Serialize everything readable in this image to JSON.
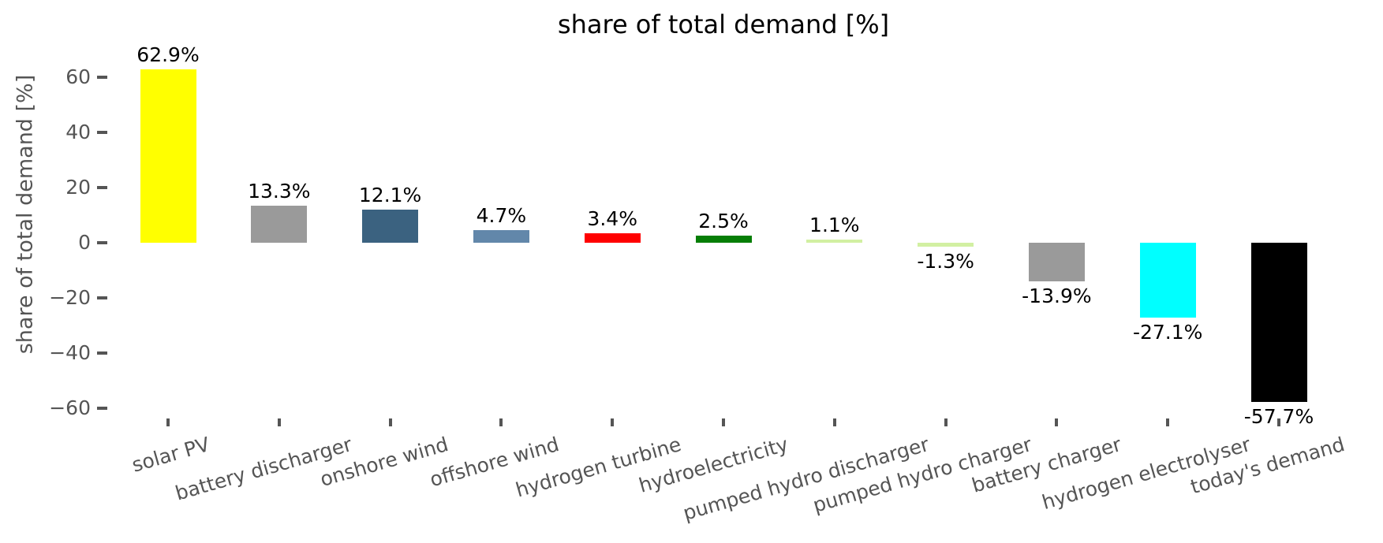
{
  "figure": {
    "title": "share of total demand [%]",
    "background_color": "#ffffff"
  },
  "chart_data": {
    "type": "bar",
    "title": "share of total demand [%]",
    "xlabel": "",
    "ylabel": "share of total demand [%]",
    "categories": [
      "solar PV",
      "battery discharger",
      "onshore wind",
      "offshore wind",
      "hydrogen turbine",
      "hydroelectricity",
      "pumped hydro discharger",
      "pumped hydro charger",
      "battery charger",
      "hydrogen electrolyser",
      "today's demand"
    ],
    "values": [
      62.9,
      13.3,
      12.1,
      4.7,
      3.4,
      2.5,
      1.1,
      -1.3,
      -13.9,
      -27.1,
      -57.7
    ],
    "value_labels": [
      "62.9%",
      "13.3%",
      "12.1%",
      "4.7%",
      "3.4%",
      "2.5%",
      "1.1%",
      "-1.3%",
      "-13.9%",
      "-27.1%",
      "-57.7%"
    ],
    "bar_colors": [
      "#ffff00",
      "#9a9a9a",
      "#3b6280",
      "#6287aa",
      "#ff0000",
      "#067e06",
      "#d2f0a2",
      "#d2f0a2",
      "#9a9a9a",
      "#00ffff",
      "#000000"
    ],
    "yticks": [
      60,
      40,
      20,
      0,
      -20,
      -40,
      -60
    ],
    "ytick_labels": [
      "60",
      "40",
      "20",
      "0",
      "−20",
      "−40",
      "−60"
    ],
    "ylim": [
      -62,
      66
    ],
    "grid": false,
    "legend": null,
    "x_label_rotation_deg": 16,
    "tick_color": "#555555",
    "axis_text_color": "#555555",
    "value_label_color": "#000000",
    "title_color": "#000000"
  }
}
